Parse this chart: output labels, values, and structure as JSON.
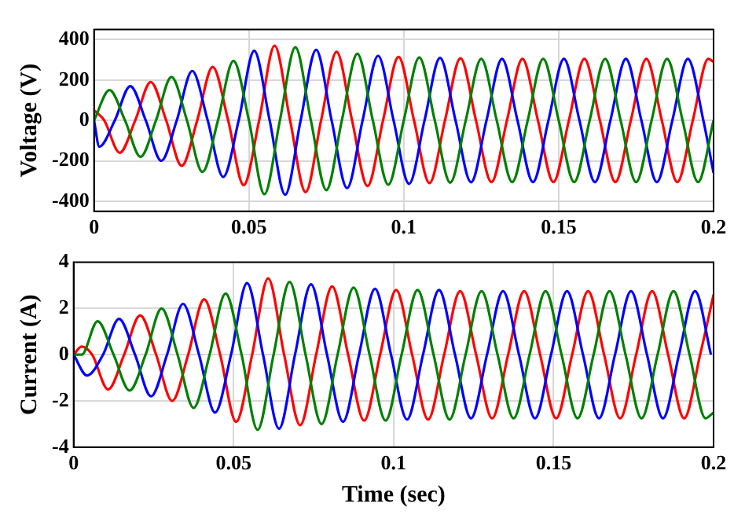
{
  "chart_data": [
    {
      "type": "line",
      "ylabel": "Voltage (V)",
      "xlim": [
        0,
        0.2
      ],
      "xticks": [
        0,
        0.05,
        0.1,
        0.15,
        0.2
      ],
      "ylim": [
        -450,
        450
      ],
      "yticks": [
        -400,
        -200,
        0,
        200,
        400
      ],
      "grid": true,
      "series": [
        {
          "color": "#008000",
          "x": [
            0,
            0.005,
            0.01,
            0.015,
            0.02,
            0.025,
            0.03,
            0.035,
            0.04,
            0.045,
            0.05,
            0.055,
            0.06,
            0.065,
            0.07,
            0.075,
            0.08,
            0.085,
            0.09,
            0.095,
            0.1,
            0.105,
            0.11,
            0.115,
            0.12,
            0.125,
            0.13,
            0.135,
            0.14,
            0.145,
            0.15,
            0.155,
            0.16,
            0.165,
            0.17,
            0.175,
            0.18,
            0.185,
            0.19,
            0.195,
            0.2
          ],
          "values": [
            0,
            150,
            0,
            -180,
            0,
            215,
            0,
            -255,
            0,
            295,
            0,
            -365,
            0,
            362,
            0,
            -345,
            0,
            330,
            0,
            -318,
            0,
            312,
            0,
            -308,
            0,
            305,
            0,
            -305,
            0,
            305,
            0,
            -305,
            0,
            305,
            0,
            -305,
            0,
            305,
            0,
            -305,
            0
          ]
        },
        {
          "color": "#0000ff",
          "x": [
            0,
            0.0017,
            0.0067,
            0.0117,
            0.0167,
            0.0217,
            0.0267,
            0.0317,
            0.0367,
            0.0417,
            0.0467,
            0.0517,
            0.0567,
            0.0617,
            0.0667,
            0.0717,
            0.0767,
            0.0817,
            0.0867,
            0.0917,
            0.0967,
            0.1017,
            0.1067,
            0.1117,
            0.1167,
            0.1217,
            0.1267,
            0.1317,
            0.1367,
            0.1417,
            0.1467,
            0.1517,
            0.1567,
            0.1617,
            0.1667,
            0.1717,
            0.1767,
            0.1817,
            0.1867,
            0.1917,
            0.1967,
            0.2
          ],
          "values": [
            0,
            -130,
            0,
            170,
            0,
            -200,
            0,
            245,
            0,
            -280,
            0,
            345,
            0,
            -368,
            0,
            350,
            0,
            -335,
            0,
            320,
            0,
            -314,
            0,
            310,
            0,
            -306,
            0,
            305,
            0,
            -305,
            0,
            305,
            0,
            -305,
            0,
            305,
            0,
            -305,
            0,
            305,
            0,
            -260
          ]
        },
        {
          "color": "#ff0000",
          "x": [
            0,
            0.0033,
            0.0083,
            0.0133,
            0.0183,
            0.0233,
            0.0283,
            0.0333,
            0.0383,
            0.0433,
            0.0483,
            0.0533,
            0.0583,
            0.0633,
            0.0683,
            0.0733,
            0.0783,
            0.0833,
            0.0883,
            0.0933,
            0.0983,
            0.1033,
            0.1083,
            0.1133,
            0.1183,
            0.1233,
            0.1283,
            0.1333,
            0.1383,
            0.1433,
            0.1483,
            0.1533,
            0.1583,
            0.1633,
            0.1683,
            0.1733,
            0.1783,
            0.1833,
            0.1883,
            0.1933,
            0.1983,
            0.2
          ],
          "values": [
            50,
            0,
            -160,
            0,
            190,
            0,
            -225,
            0,
            265,
            0,
            -320,
            0,
            370,
            0,
            -355,
            0,
            340,
            0,
            -325,
            0,
            315,
            0,
            -310,
            0,
            308,
            0,
            -305,
            0,
            305,
            0,
            -305,
            0,
            305,
            0,
            -305,
            0,
            305,
            0,
            -305,
            0,
            305,
            290
          ]
        }
      ]
    },
    {
      "type": "line",
      "xlabel": "Time (sec)",
      "ylabel": "Current (A)",
      "xlim": [
        0,
        0.2
      ],
      "xticks": [
        0,
        0.05,
        0.1,
        0.15,
        0.2
      ],
      "ylim": [
        -4,
        4
      ],
      "yticks": [
        -4,
        -2,
        0,
        2,
        4
      ],
      "grid": true,
      "series": [
        {
          "color": "#008000",
          "x": [
            0,
            0.0025,
            0.0075,
            0.0125,
            0.0175,
            0.0225,
            0.0275,
            0.0325,
            0.0375,
            0.0425,
            0.0475,
            0.0525,
            0.0575,
            0.0625,
            0.0675,
            0.0725,
            0.0775,
            0.0825,
            0.0875,
            0.0925,
            0.0975,
            0.1025,
            0.1075,
            0.1125,
            0.1175,
            0.1225,
            0.1275,
            0.1325,
            0.1375,
            0.1425,
            0.1475,
            0.1525,
            0.1575,
            0.1625,
            0.1675,
            0.1725,
            0.1775,
            0.1825,
            0.1875,
            0.1925,
            0.1975,
            0.2
          ],
          "values": [
            0,
            0,
            1.45,
            0,
            -1.55,
            0,
            2,
            0,
            -2.3,
            0,
            2.65,
            0,
            -3.25,
            0,
            3.15,
            0,
            -3,
            0,
            2.9,
            0,
            -2.85,
            0,
            2.8,
            0,
            -2.8,
            0,
            2.75,
            0,
            -2.75,
            0,
            2.75,
            0,
            -2.75,
            0,
            2.75,
            0,
            -2.75,
            0,
            2.75,
            0,
            -2.75,
            -2.5
          ]
        },
        {
          "color": "#0000ff",
          "x": [
            0,
            0.0042,
            0.0092,
            0.0142,
            0.0192,
            0.0242,
            0.0292,
            0.0342,
            0.0392,
            0.0442,
            0.0492,
            0.0542,
            0.0592,
            0.0642,
            0.0692,
            0.0742,
            0.0792,
            0.0842,
            0.0892,
            0.0942,
            0.0992,
            0.1042,
            0.1092,
            0.1142,
            0.1192,
            0.1242,
            0.1292,
            0.1342,
            0.1392,
            0.1442,
            0.1492,
            0.1542,
            0.1592,
            0.1642,
            0.1692,
            0.1742,
            0.1792,
            0.1842,
            0.1892,
            0.1942,
            0.1992
          ],
          "values": [
            0,
            -0.9,
            0,
            1.55,
            0,
            -1.8,
            0,
            2.2,
            0,
            -2.5,
            0,
            3.1,
            0,
            -3.2,
            0,
            3.05,
            0,
            -2.9,
            0,
            2.85,
            0,
            -2.8,
            0,
            2.8,
            0,
            -2.75,
            0,
            2.75,
            0,
            -2.75,
            0,
            2.75,
            0,
            -2.75,
            0,
            2.75,
            0,
            -2.75,
            0,
            2.75,
            0
          ]
        },
        {
          "color": "#ff0000",
          "x": [
            0,
            0.0025,
            0.0058,
            0.0108,
            0.0158,
            0.0208,
            0.0258,
            0.0308,
            0.0358,
            0.0408,
            0.0458,
            0.0508,
            0.0558,
            0.0608,
            0.0658,
            0.0708,
            0.0758,
            0.0808,
            0.0858,
            0.0908,
            0.0958,
            0.1008,
            0.1058,
            0.1108,
            0.1158,
            0.1208,
            0.1258,
            0.1308,
            0.1358,
            0.1408,
            0.1458,
            0.1508,
            0.1558,
            0.1608,
            0.1658,
            0.1708,
            0.1758,
            0.1808,
            0.1858,
            0.1908,
            0.1958,
            0.2
          ],
          "values": [
            0,
            0.35,
            0,
            -1.5,
            0,
            1.7,
            0,
            -2,
            0,
            2.4,
            0,
            -2.9,
            0,
            3.3,
            0,
            -3.05,
            0,
            2.95,
            0,
            -2.85,
            0,
            2.8,
            0,
            -2.8,
            0,
            2.75,
            0,
            -2.75,
            0,
            2.75,
            0,
            -2.75,
            0,
            2.75,
            0,
            -2.75,
            0,
            2.75,
            0,
            -2.75,
            0,
            2.6
          ]
        }
      ]
    }
  ]
}
